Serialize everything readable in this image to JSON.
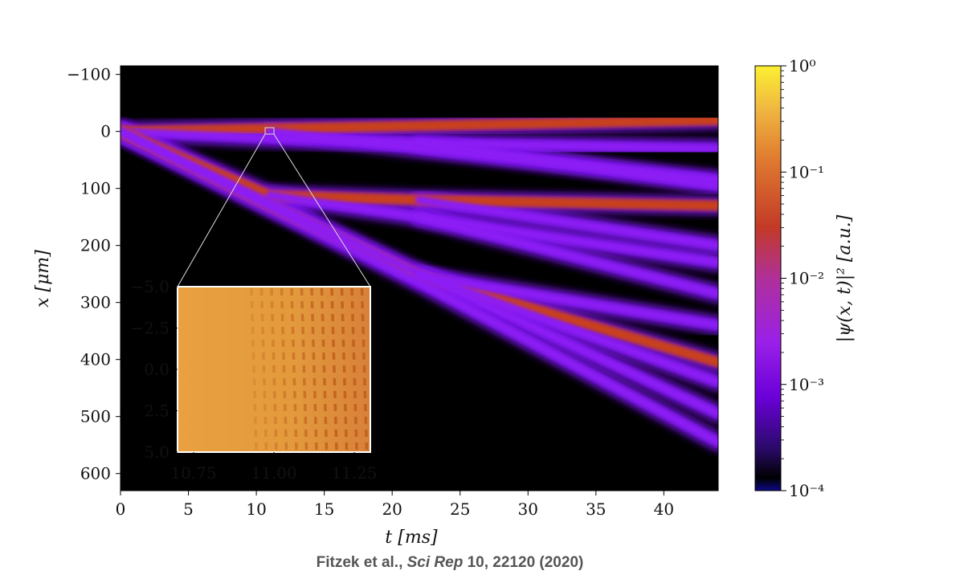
{
  "chart_data": [
    {
      "type": "heatmap",
      "xlabel": "t [ms]",
      "ylabel": "x [μm]",
      "xlim": [
        0,
        44
      ],
      "ylim": [
        630,
        -115
      ],
      "x_ticks": [
        0,
        5,
        10,
        15,
        20,
        25,
        30,
        35,
        40
      ],
      "y_ticks": [
        -100,
        0,
        100,
        200,
        300,
        400,
        500,
        600
      ],
      "y_tick_labels": [
        "−100",
        "0",
        "100",
        "200",
        "300",
        "400",
        "500",
        "600"
      ],
      "colormap": "plasma-like (black → purple → orange → yellow)",
      "scale": "log",
      "beams": [
        {
          "t": [
            0,
            11,
            22,
            44
          ],
          "x": [
            0,
            -5,
            -10,
            -20
          ],
          "level": "high"
        },
        {
          "t": [
            0,
            11,
            22,
            44
          ],
          "x": [
            0,
            12,
            20,
            30
          ],
          "level": "low"
        },
        {
          "t": [
            0,
            11,
            22,
            44
          ],
          "x": [
            0,
            112,
            120,
            130
          ],
          "level": "high"
        },
        {
          "t": [
            0,
            11,
            22,
            44
          ],
          "x": [
            0,
            130,
            253,
            405
          ],
          "level": "high"
        },
        {
          "t": [
            11,
            22,
            44
          ],
          "x": [
            0,
            30,
            85
          ],
          "level": "low"
        },
        {
          "t": [
            11,
            22,
            44
          ],
          "x": [
            112,
            150,
            230
          ],
          "level": "low"
        },
        {
          "t": [
            0,
            22,
            44
          ],
          "x": [
            0,
            250,
            495
          ],
          "level": "low"
        },
        {
          "t": [
            0,
            22,
            44
          ],
          "x": [
            0,
            265,
            545
          ],
          "level": "low"
        },
        {
          "t": [
            22,
            44
          ],
          "x": [
            20,
            95
          ],
          "level": "low"
        },
        {
          "t": [
            22,
            44
          ],
          "x": [
            120,
            200
          ],
          "level": "low"
        },
        {
          "t": [
            22,
            44
          ],
          "x": [
            150,
            285
          ],
          "level": "low"
        },
        {
          "t": [
            22,
            44
          ],
          "x": [
            253,
            340
          ],
          "level": "low"
        },
        {
          "t": [
            22,
            44
          ],
          "x": [
            250,
            440
          ],
          "level": "low"
        }
      ]
    },
    {
      "type": "heatmap",
      "role": "inset",
      "xlim": [
        10.7,
        11.3
      ],
      "ylim": [
        -5.0,
        5.0
      ],
      "x_ticks": [
        10.75,
        11.0,
        11.25
      ],
      "x_tick_labels": [
        "10.75",
        "11.00",
        "11.25"
      ],
      "y_ticks": [
        -5.0,
        -2.5,
        0.0,
        2.5,
        5.0
      ],
      "y_tick_labels": [
        "−5.0",
        "−2.5",
        "0.0",
        "2.5",
        "5.0"
      ]
    },
    {
      "type": "colorbar",
      "label": "|ψ(x, t)|² [a.u.]",
      "scale": "log",
      "range": [
        0.0001,
        1
      ],
      "tick_labels": [
        "10⁰",
        "10⁻¹",
        "10⁻²",
        "10⁻³",
        "10⁻⁴"
      ],
      "tick_values": [
        1,
        0.1,
        0.01,
        0.001,
        0.0001
      ]
    }
  ],
  "citation": {
    "authors": "Fitzek et al.,",
    "journal": "Sci Rep",
    "rest": "10, 22120 (2020)"
  }
}
